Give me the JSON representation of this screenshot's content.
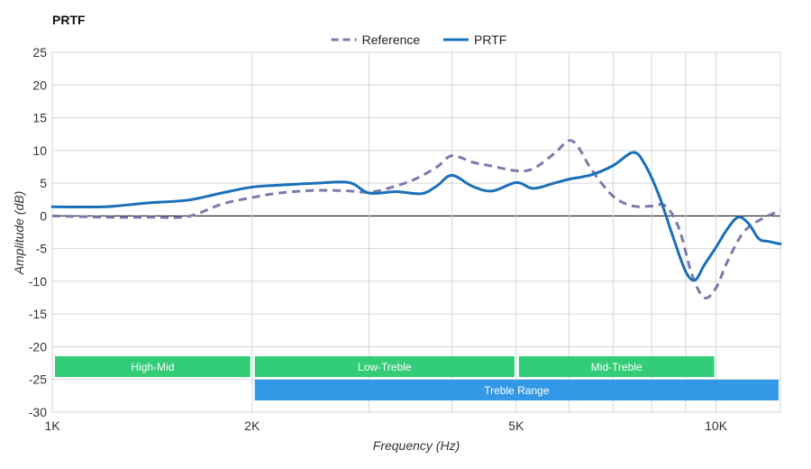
{
  "chart_data": {
    "type": "line",
    "title": "PRTF",
    "xlabel": "Frequency (Hz)",
    "ylabel": "Amplitude (dB)",
    "x_scale": "log",
    "xlim": [
      1000,
      12500
    ],
    "ylim": [
      -30,
      25
    ],
    "y_ticks": [
      25,
      20,
      15,
      10,
      5,
      0,
      -5,
      -10,
      -15,
      -20,
      -25,
      -30
    ],
    "x_ticks": [
      {
        "value": 1000,
        "label": "1K"
      },
      {
        "value": 2000,
        "label": "2K"
      },
      {
        "value": 5000,
        "label": "5K"
      },
      {
        "value": 10000,
        "label": "10K"
      }
    ],
    "x_minor_gridlines": [
      3000,
      4000,
      6000,
      7000,
      8000,
      9000
    ],
    "grid": true,
    "legend_position": "top-center",
    "series": [
      {
        "name": "Reference",
        "style": "dashed",
        "color": "#7a7aad",
        "points": [
          [
            1000,
            0.0
          ],
          [
            1200,
            -0.2
          ],
          [
            1400,
            -0.2
          ],
          [
            1600,
            -0.1
          ],
          [
            1800,
            1.8
          ],
          [
            2000,
            2.8
          ],
          [
            2200,
            3.5
          ],
          [
            2500,
            3.9
          ],
          [
            2800,
            3.8
          ],
          [
            3000,
            3.6
          ],
          [
            3200,
            4.2
          ],
          [
            3500,
            5.5
          ],
          [
            3800,
            7.5
          ],
          [
            4000,
            9.2
          ],
          [
            4300,
            8.2
          ],
          [
            4600,
            7.6
          ],
          [
            5000,
            6.9
          ],
          [
            5300,
            7.2
          ],
          [
            5700,
            9.5
          ],
          [
            6000,
            11.5
          ],
          [
            6200,
            10.5
          ],
          [
            6500,
            7.0
          ],
          [
            7000,
            3.0
          ],
          [
            7500,
            1.5
          ],
          [
            8000,
            1.5
          ],
          [
            8400,
            1.5
          ],
          [
            8800,
            -2.0
          ],
          [
            9200,
            -9.0
          ],
          [
            9600,
            -12.5
          ],
          [
            10000,
            -11.0
          ],
          [
            10400,
            -7.0
          ],
          [
            11000,
            -2.5
          ],
          [
            11700,
            -0.5
          ],
          [
            12500,
            0.8
          ]
        ]
      },
      {
        "name": "PRTF",
        "style": "solid",
        "color": "#1a6fb8",
        "points": [
          [
            1000,
            1.4
          ],
          [
            1200,
            1.4
          ],
          [
            1400,
            2.0
          ],
          [
            1600,
            2.4
          ],
          [
            1800,
            3.5
          ],
          [
            2000,
            4.4
          ],
          [
            2200,
            4.7
          ],
          [
            2500,
            5.0
          ],
          [
            2800,
            5.1
          ],
          [
            3000,
            3.5
          ],
          [
            3300,
            3.7
          ],
          [
            3600,
            3.4
          ],
          [
            3800,
            4.6
          ],
          [
            4000,
            6.2
          ],
          [
            4300,
            4.5
          ],
          [
            4600,
            3.8
          ],
          [
            5000,
            5.1
          ],
          [
            5300,
            4.2
          ],
          [
            5700,
            5.0
          ],
          [
            6000,
            5.6
          ],
          [
            6500,
            6.3
          ],
          [
            7000,
            7.7
          ],
          [
            7500,
            9.7
          ],
          [
            7800,
            8.0
          ],
          [
            8200,
            3.2
          ],
          [
            8600,
            -3.0
          ],
          [
            9000,
            -8.5
          ],
          [
            9300,
            -9.8
          ],
          [
            9600,
            -7.5
          ],
          [
            10000,
            -4.8
          ],
          [
            10400,
            -2.0
          ],
          [
            10800,
            -0.2
          ],
          [
            11200,
            -1.2
          ],
          [
            11600,
            -3.5
          ],
          [
            12000,
            -3.9
          ],
          [
            12500,
            -4.3
          ]
        ]
      }
    ],
    "bands": [
      {
        "label": "High-Mid",
        "start": 1000,
        "end": 2000,
        "color": "#33cc77",
        "row": 0
      },
      {
        "label": "Low-Treble",
        "start": 2000,
        "end": 5000,
        "color": "#33cc77",
        "row": 0
      },
      {
        "label": "Mid-Treble",
        "start": 5000,
        "end": 10000,
        "color": "#33cc77",
        "row": 0
      },
      {
        "label": "Treble Range",
        "start": 2000,
        "end": 12500,
        "color": "#3399e6",
        "row": 1
      }
    ]
  }
}
